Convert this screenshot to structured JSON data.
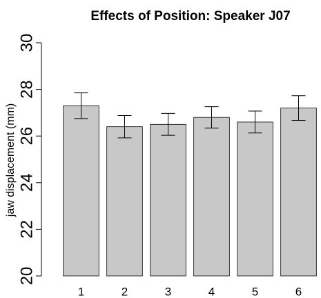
{
  "chart_data": {
    "type": "bar",
    "title": "Effects of Position: Speaker J07",
    "ylabel": "jaw displacement (mm)",
    "categories": [
      "1",
      "2",
      "3",
      "4",
      "5",
      "6"
    ],
    "values": [
      27.3,
      26.4,
      26.5,
      26.8,
      26.6,
      27.2
    ],
    "errors": [
      0.55,
      0.48,
      0.47,
      0.46,
      0.47,
      0.53
    ],
    "color": "#c8c8c8",
    "ylim": [
      20,
      30
    ],
    "yticks": [
      20,
      22,
      24,
      26,
      28,
      30
    ],
    "grid": false
  }
}
